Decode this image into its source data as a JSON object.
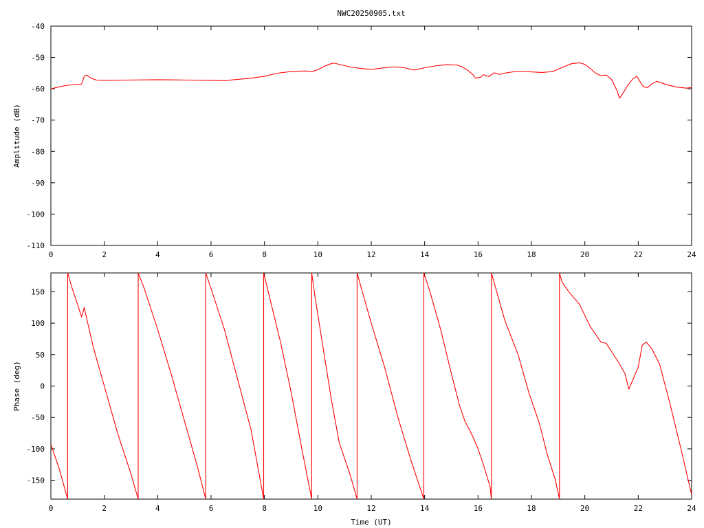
{
  "title": "NWC20250905.txt",
  "chart_data": [
    {
      "type": "line",
      "ylabel": "Amplitude (dB)",
      "xlabel": "",
      "xlim": [
        0,
        24
      ],
      "ylim": [
        -110,
        -40
      ],
      "xticks": [
        "0",
        "2",
        "4",
        "6",
        "8",
        "10",
        "12",
        "14",
        "16",
        "18",
        "20",
        "22",
        "24"
      ],
      "yticks": [
        "-40",
        "-50",
        "-60",
        "-70",
        "-80",
        "-90",
        "-100",
        "-110"
      ],
      "grid": false,
      "series": [
        {
          "color": "#ff0000",
          "points": [
            [
              0,
              -60.0
            ],
            [
              0.3,
              -59.4
            ],
            [
              0.6,
              -58.9
            ],
            [
              1.0,
              -58.6
            ],
            [
              1.15,
              -58.5
            ],
            [
              1.25,
              -56.0
            ],
            [
              1.35,
              -55.6
            ],
            [
              1.5,
              -56.6
            ],
            [
              1.7,
              -57.2
            ],
            [
              2.0,
              -57.3
            ],
            [
              3.0,
              -57.2
            ],
            [
              4.0,
              -57.1
            ],
            [
              5.0,
              -57.2
            ],
            [
              6.0,
              -57.3
            ],
            [
              6.5,
              -57.4
            ],
            [
              7.0,
              -57.0
            ],
            [
              7.5,
              -56.6
            ],
            [
              8.0,
              -56.0
            ],
            [
              8.5,
              -55.0
            ],
            [
              9.0,
              -54.5
            ],
            [
              9.5,
              -54.3
            ],
            [
              9.8,
              -54.5
            ],
            [
              10.0,
              -53.9
            ],
            [
              10.3,
              -52.6
            ],
            [
              10.5,
              -52.0
            ],
            [
              10.6,
              -51.8
            ],
            [
              10.8,
              -52.2
            ],
            [
              11.2,
              -53.0
            ],
            [
              11.6,
              -53.5
            ],
            [
              12.0,
              -53.8
            ],
            [
              12.4,
              -53.4
            ],
            [
              12.8,
              -53.0
            ],
            [
              13.2,
              -53.2
            ],
            [
              13.6,
              -54.0
            ],
            [
              14.0,
              -53.3
            ],
            [
              14.4,
              -52.7
            ],
            [
              14.8,
              -52.3
            ],
            [
              15.2,
              -52.4
            ],
            [
              15.4,
              -53.0
            ],
            [
              15.6,
              -54.0
            ],
            [
              15.8,
              -55.4
            ],
            [
              15.9,
              -56.6
            ],
            [
              16.1,
              -56.3
            ],
            [
              16.2,
              -55.5
            ],
            [
              16.4,
              -56.1
            ],
            [
              16.6,
              -54.9
            ],
            [
              16.8,
              -55.4
            ],
            [
              17.0,
              -55.0
            ],
            [
              17.3,
              -54.6
            ],
            [
              17.6,
              -54.4
            ],
            [
              18.0,
              -54.6
            ],
            [
              18.4,
              -54.8
            ],
            [
              18.8,
              -54.5
            ],
            [
              19.2,
              -53.0
            ],
            [
              19.5,
              -52.0
            ],
            [
              19.8,
              -51.7
            ],
            [
              20.0,
              -52.2
            ],
            [
              20.2,
              -53.5
            ],
            [
              20.4,
              -55.0
            ],
            [
              20.6,
              -55.8
            ],
            [
              20.8,
              -55.6
            ],
            [
              21.0,
              -57.0
            ],
            [
              21.2,
              -60.5
            ],
            [
              21.3,
              -63.0
            ],
            [
              21.4,
              -61.8
            ],
            [
              21.6,
              -59.0
            ],
            [
              21.8,
              -56.8
            ],
            [
              21.95,
              -56.0
            ],
            [
              22.05,
              -57.5
            ],
            [
              22.2,
              -59.4
            ],
            [
              22.35,
              -59.6
            ],
            [
              22.5,
              -58.5
            ],
            [
              22.7,
              -57.6
            ],
            [
              23.0,
              -58.5
            ],
            [
              23.4,
              -59.4
            ],
            [
              23.8,
              -59.8
            ],
            [
              24.0,
              -59.6
            ]
          ]
        }
      ]
    },
    {
      "type": "line",
      "ylabel": "Phase (deg)",
      "xlabel": "Time (UT)",
      "xlim": [
        0,
        24
      ],
      "ylim": [
        -180,
        180
      ],
      "xticks": [
        "0",
        "2",
        "4",
        "6",
        "8",
        "10",
        "12",
        "14",
        "16",
        "18",
        "20",
        "22",
        "24"
      ],
      "yticks": [
        "150",
        "100",
        "50",
        "0",
        "-50",
        "-100",
        "-150"
      ],
      "ytick_values": [
        150,
        100,
        50,
        0,
        -50,
        -100,
        -150
      ],
      "grid": false,
      "series": [
        {
          "color": "#ff0000",
          "points": [
            [
              0,
              -93
            ],
            [
              0.3,
              -130
            ],
            [
              0.63,
              -180
            ],
            [
              0.63,
              180
            ],
            [
              0.8,
              155
            ],
            [
              1.0,
              130
            ],
            [
              1.15,
              110
            ],
            [
              1.25,
              125
            ],
            [
              1.3,
              115
            ],
            [
              1.6,
              60
            ],
            [
              2.0,
              0
            ],
            [
              2.5,
              -75
            ],
            [
              3.0,
              -140
            ],
            [
              3.27,
              -180
            ],
            [
              3.27,
              180
            ],
            [
              3.5,
              155
            ],
            [
              4.0,
              90
            ],
            [
              4.5,
              20
            ],
            [
              5.0,
              -55
            ],
            [
              5.5,
              -130
            ],
            [
              5.8,
              -180
            ],
            [
              5.8,
              180
            ],
            [
              6.0,
              155
            ],
            [
              6.5,
              90
            ],
            [
              7.0,
              10
            ],
            [
              7.5,
              -70
            ],
            [
              7.8,
              -140
            ],
            [
              7.97,
              -180
            ],
            [
              7.97,
              180
            ],
            [
              8.2,
              140
            ],
            [
              8.6,
              70
            ],
            [
              9.0,
              -10
            ],
            [
              9.4,
              -100
            ],
            [
              9.77,
              -180
            ],
            [
              9.77,
              180
            ],
            [
              9.9,
              140
            ],
            [
              10.2,
              60
            ],
            [
              10.5,
              -20
            ],
            [
              10.8,
              -90
            ],
            [
              11.2,
              -140
            ],
            [
              11.47,
              -180
            ],
            [
              11.47,
              180
            ],
            [
              11.6,
              160
            ],
            [
              12.0,
              100
            ],
            [
              12.5,
              30
            ],
            [
              13.0,
              -50
            ],
            [
              13.5,
              -120
            ],
            [
              13.97,
              -180
            ],
            [
              13.97,
              180
            ],
            [
              14.2,
              150
            ],
            [
              14.6,
              90
            ],
            [
              15.0,
              20
            ],
            [
              15.3,
              -30
            ],
            [
              15.5,
              -55
            ],
            [
              15.8,
              -80
            ],
            [
              16.0,
              -100
            ],
            [
              16.2,
              -125
            ],
            [
              16.45,
              -160
            ],
            [
              16.5,
              -180
            ],
            [
              16.5,
              180
            ],
            [
              16.7,
              150
            ],
            [
              17.0,
              105
            ],
            [
              17.5,
              50
            ],
            [
              17.9,
              -10
            ],
            [
              18.3,
              -60
            ],
            [
              18.6,
              -110
            ],
            [
              18.9,
              -150
            ],
            [
              19.05,
              -180
            ],
            [
              19.05,
              180
            ],
            [
              19.15,
              165
            ],
            [
              19.4,
              150
            ],
            [
              19.8,
              130
            ],
            [
              20.2,
              95
            ],
            [
              20.6,
              70
            ],
            [
              20.8,
              68
            ],
            [
              21.0,
              55
            ],
            [
              21.3,
              35
            ],
            [
              21.5,
              20
            ],
            [
              21.65,
              -5
            ],
            [
              21.8,
              10
            ],
            [
              22.0,
              30
            ],
            [
              22.15,
              65
            ],
            [
              22.3,
              70
            ],
            [
              22.5,
              60
            ],
            [
              22.8,
              35
            ],
            [
              23.2,
              -30
            ],
            [
              23.6,
              -100
            ],
            [
              24.0,
              -173
            ]
          ]
        }
      ]
    }
  ]
}
